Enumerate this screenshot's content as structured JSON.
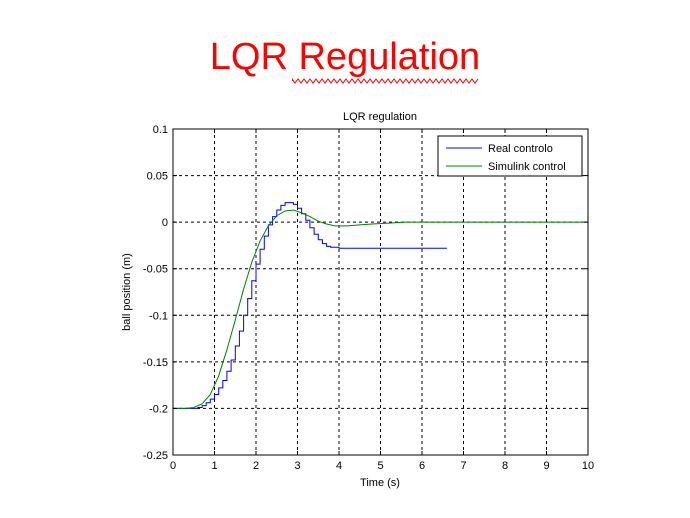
{
  "slide": {
    "title": "LQR Regulation"
  },
  "colors": {
    "title": "#ff0000",
    "series_real": "#0000ff",
    "series_sim": "#008000",
    "spellcheck": "#ff0000"
  },
  "chart_data": {
    "type": "line",
    "title": "LQR regulation",
    "xlabel": "Time (s)",
    "ylabel": "ball position (m)",
    "xlim": [
      0,
      10
    ],
    "ylim": [
      -0.25,
      0.1
    ],
    "grid": true,
    "legend_position": "top-right",
    "x_ticks": [
      "0",
      "1",
      "2",
      "3",
      "4",
      "5",
      "6",
      "7",
      "8",
      "9",
      "10"
    ],
    "y_ticks": [
      "0.1",
      "0.05",
      "0",
      "-0.05",
      "-0.1",
      "-0.15",
      "-0.2",
      "-0.25"
    ],
    "series": [
      {
        "name": "Real controlo",
        "color": "#0000ff",
        "step": true,
        "x": [
          0,
          0.5,
          0.6,
          0.7,
          0.8,
          0.9,
          1.0,
          1.1,
          1.2,
          1.3,
          1.4,
          1.5,
          1.6,
          1.7,
          1.8,
          1.9,
          2.0,
          2.1,
          2.2,
          2.3,
          2.4,
          2.5,
          2.6,
          2.7,
          2.8,
          2.9,
          3.0,
          3.1,
          3.2,
          3.3,
          3.4,
          3.5,
          3.6,
          3.7,
          3.8,
          3.9,
          4.0,
          6.6
        ],
        "y": [
          -0.2,
          -0.2,
          -0.199,
          -0.197,
          -0.194,
          -0.19,
          -0.185,
          -0.178,
          -0.17,
          -0.16,
          -0.148,
          -0.133,
          -0.117,
          -0.1,
          -0.082,
          -0.063,
          -0.045,
          -0.029,
          -0.015,
          -0.003,
          0.006,
          0.013,
          0.018,
          0.021,
          0.021,
          0.019,
          0.015,
          0.009,
          0.002,
          -0.006,
          -0.013,
          -0.019,
          -0.023,
          -0.026,
          -0.027,
          -0.027,
          -0.028,
          -0.028
        ]
      },
      {
        "name": "Simulink control",
        "color": "#008000",
        "step": false,
        "x": [
          0,
          0.3,
          0.5,
          0.7,
          0.9,
          1.1,
          1.3,
          1.5,
          1.7,
          1.9,
          2.1,
          2.3,
          2.5,
          2.7,
          2.9,
          3.1,
          3.3,
          3.5,
          3.7,
          3.9,
          4.2,
          4.5,
          4.8,
          5.2,
          5.6,
          6,
          7,
          8,
          9,
          10
        ],
        "y": [
          -0.2,
          -0.2,
          -0.199,
          -0.195,
          -0.185,
          -0.165,
          -0.137,
          -0.105,
          -0.072,
          -0.043,
          -0.02,
          -0.004,
          0.007,
          0.012,
          0.013,
          0.01,
          0.006,
          0.001,
          -0.002,
          -0.004,
          -0.004,
          -0.003,
          -0.002,
          -0.001,
          0,
          0,
          0,
          0,
          0,
          0
        ]
      }
    ]
  }
}
